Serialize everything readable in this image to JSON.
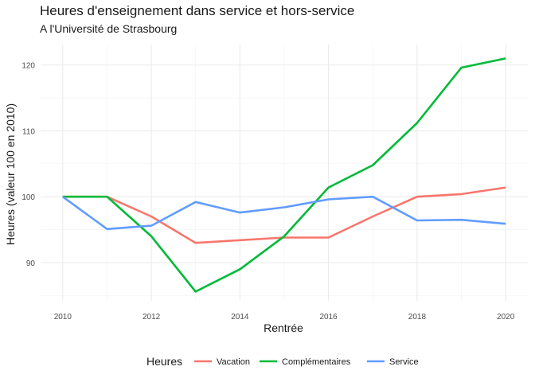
{
  "chart_data": {
    "type": "line",
    "title": "Heures d'enseignement dans service et hors-service",
    "subtitle": "A l'Université de Strasbourg",
    "xlabel": "Rentrée",
    "ylabel": "Heures (valeur 100 en 2010)",
    "x": [
      2010,
      2011,
      2012,
      2013,
      2014,
      2015,
      2016,
      2017,
      2018,
      2019,
      2020
    ],
    "xticks": [
      2010,
      2012,
      2014,
      2016,
      2018,
      2020
    ],
    "yticks": [
      90,
      100,
      110,
      120
    ],
    "xlim": [
      2009.5,
      2020.5
    ],
    "ylim": [
      84.2,
      123.1
    ],
    "grid": true,
    "legend": {
      "title": "Heures",
      "position": "bottom"
    },
    "series": [
      {
        "name": "Vacation",
        "color": "#f8766d",
        "values": [
          100,
          100,
          97,
          93.0,
          93.4,
          93.8,
          93.8,
          97,
          100,
          100.4,
          101.4
        ]
      },
      {
        "name": "Complémentaires",
        "color": "#00ba38",
        "values": [
          100,
          100,
          94,
          85.6,
          89,
          94,
          101.4,
          104.8,
          111.2,
          119.6,
          121
        ]
      },
      {
        "name": "Service",
        "color": "#619cff",
        "values": [
          100,
          95.1,
          95.6,
          99.2,
          97.6,
          98.4,
          99.6,
          100,
          96.4,
          96.5,
          95.9
        ]
      }
    ]
  }
}
